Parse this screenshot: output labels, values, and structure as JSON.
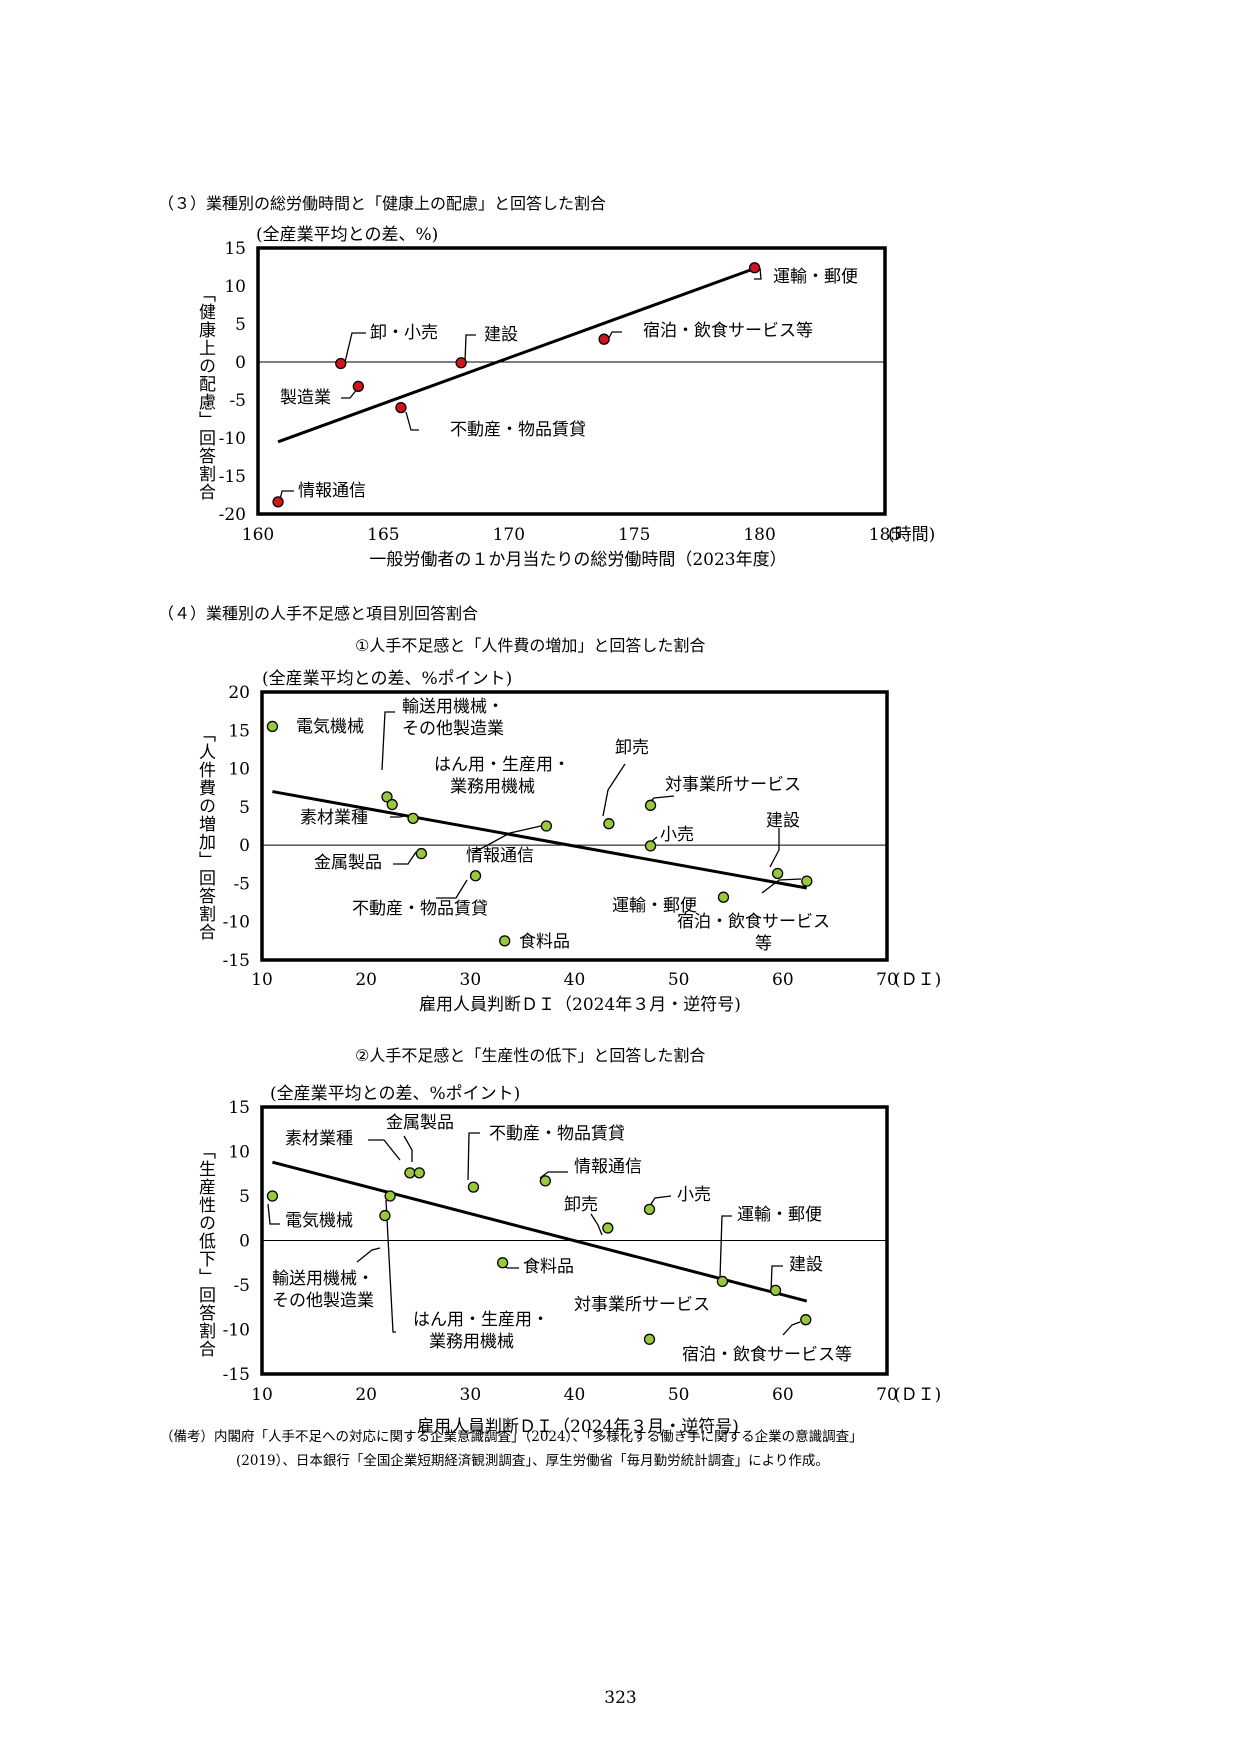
{
  "sections": {
    "s3_title": "（３）業種別の総労働時間と「健康上の配慮」と回答した割合",
    "s4_title": "（４）業種別の人手不足感と項目別回答割合",
    "s4_sub1": "①人手不足感と「人件費の増加」と回答した割合",
    "s4_sub2": "②人手不足感と「生産性の低下」と回答した割合"
  },
  "notes": {
    "line1": "（備考）内閣府「人手不足への対応に関する企業意識調査」（2024）、「多様化する働き手に関する企業の意識調査」",
    "line2": "(2019）、日本銀行「全国企業短期経済観測調査」、厚生労働省「毎月勤労統計調査」により作成。"
  },
  "page_number": "323",
  "colors": {
    "red_marker": "#d0161d",
    "green_marker": "#98c93c",
    "frame": "#000000"
  },
  "chart_data": [
    {
      "type": "scatter",
      "title": "",
      "ylabel": "「健康上の配慮」回答割合",
      "unit_note": "(全産業平均との差、%)",
      "xlabel": "一般労働者の１か月当たりの総労働時間（2023年度）",
      "x_unit": "(時間)",
      "xlim": [
        160,
        185
      ],
      "ylim": [
        -20,
        15
      ],
      "xticks": [
        160,
        165,
        170,
        175,
        180,
        185
      ],
      "yticks": [
        15,
        10,
        5,
        0,
        -5,
        -10,
        -15,
        -20
      ],
      "marker_color": "#d0161d",
      "points": [
        {
          "label": "運輸・郵便",
          "x": 179.8,
          "y": 12.4
        },
        {
          "label": "宿泊・飲食サービス等",
          "x": 173.8,
          "y": 3.0
        },
        {
          "label": "建設",
          "x": 168.1,
          "y": -0.1
        },
        {
          "label": "卸・小売",
          "x": 163.3,
          "y": -0.2
        },
        {
          "label": "製造業",
          "x": 164.0,
          "y": -3.2
        },
        {
          "label": "不動産・物品賃貸",
          "x": 165.7,
          "y": -6.0
        },
        {
          "label": "情報通信",
          "x": 160.8,
          "y": -18.4
        }
      ],
      "trendline": {
        "x": [
          160.8,
          179.8
        ],
        "y": [
          -10.5,
          12.3
        ]
      }
    },
    {
      "type": "scatter",
      "title": "①人手不足感と「人件費の増加」と回答した割合",
      "ylabel": "「人件費の増加」回答割合",
      "unit_note": "(全産業平均との差、%ポイント)",
      "xlabel": "雇用人員判断ＤＩ（2024年３月・逆符号)",
      "x_unit": "(ＤＩ)",
      "xlim": [
        10,
        70
      ],
      "ylim": [
        -15,
        20
      ],
      "xticks": [
        10,
        20,
        30,
        40,
        50,
        60,
        70
      ],
      "yticks": [
        20,
        15,
        10,
        5,
        0,
        -5,
        -10,
        -15
      ],
      "marker_color": "#98c93c",
      "points": [
        {
          "label": "電気機械",
          "x": 11.0,
          "y": 15.5
        },
        {
          "label": "輸送用機械・その他製造業",
          "x": 22.0,
          "y": 6.3
        },
        {
          "label": "はん用・生産用・業務用機械",
          "x": 22.5,
          "y": 5.3
        },
        {
          "label": "素材業種",
          "x": 24.5,
          "y": 3.5
        },
        {
          "label": "金属製品",
          "x": 25.3,
          "y": -1.1
        },
        {
          "label": "不動産・物品賃貸",
          "x": 30.5,
          "y": -4.0
        },
        {
          "label": "食料品",
          "x": 33.3,
          "y": -12.5
        },
        {
          "label": "情報通信",
          "x": 37.3,
          "y": 2.5
        },
        {
          "label": "卸売",
          "x": 43.3,
          "y": 2.8
        },
        {
          "label": "対事業所サービス",
          "x": 47.3,
          "y": 5.2
        },
        {
          "label": "小売",
          "x": 47.3,
          "y": -0.1
        },
        {
          "label": "運輸・郵便",
          "x": 54.3,
          "y": -6.8
        },
        {
          "label": "建設",
          "x": 59.5,
          "y": -3.7
        },
        {
          "label": "宿泊・飲食サービス等",
          "x": 62.3,
          "y": -4.7
        }
      ],
      "trendline": {
        "x": [
          11.0,
          62.3
        ],
        "y": [
          7.0,
          -5.6
        ]
      }
    },
    {
      "type": "scatter",
      "title": "②人手不足感と「生産性の低下」と回答した割合",
      "ylabel": "「生産性の低下」回答割合",
      "unit_note": "(全産業平均との差、%ポイント)",
      "xlabel": "雇用人員判断ＤＩ（2024年３月・逆符号)",
      "x_unit": "(ＤＩ)",
      "xlim": [
        10,
        70
      ],
      "ylim": [
        -15,
        15
      ],
      "xticks": [
        10,
        20,
        30,
        40,
        50,
        60,
        70
      ],
      "yticks": [
        15,
        10,
        5,
        0,
        -5,
        -10,
        -15
      ],
      "marker_color": "#98c93c",
      "points": [
        {
          "label": "電気機械",
          "x": 11.0,
          "y": 5.0
        },
        {
          "label": "輸送用機械・その他製造業",
          "x": 21.8,
          "y": 2.8
        },
        {
          "label": "はん用・生産用・業務用機械",
          "x": 22.3,
          "y": 5.0
        },
        {
          "label": "素材業種",
          "x": 24.2,
          "y": 7.6
        },
        {
          "label": "金属製品",
          "x": 25.1,
          "y": 7.6
        },
        {
          "label": "不動産・物品賃貸",
          "x": 30.3,
          "y": 6.0
        },
        {
          "label": "食料品",
          "x": 33.1,
          "y": -2.5
        },
        {
          "label": "情報通信",
          "x": 37.2,
          "y": 6.7
        },
        {
          "label": "卸売",
          "x": 43.2,
          "y": 1.4
        },
        {
          "label": "小売",
          "x": 47.2,
          "y": 3.5
        },
        {
          "label": "対事業所サービス",
          "x": 47.2,
          "y": -11.1
        },
        {
          "label": "運輸・郵便",
          "x": 54.2,
          "y": -4.6
        },
        {
          "label": "建設",
          "x": 59.3,
          "y": -5.6
        },
        {
          "label": "宿泊・飲食サービス等",
          "x": 62.2,
          "y": -8.9
        }
      ],
      "trendline": {
        "x": [
          11.0,
          62.3
        ],
        "y": [
          8.8,
          -6.8
        ]
      }
    }
  ]
}
